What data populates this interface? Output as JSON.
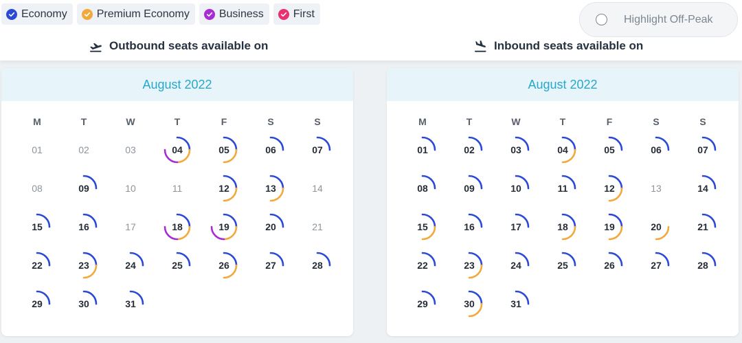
{
  "colors": {
    "economy": "#2b49d8",
    "premium_economy": "#f2a93b",
    "business": "#a92bd6",
    "first": "#ec2f6f"
  },
  "legend": [
    {
      "label": "Economy",
      "color": "#2b49d8"
    },
    {
      "label": "Premium Economy",
      "color": "#f2a93b"
    },
    {
      "label": "Business",
      "color": "#a92bd6"
    },
    {
      "label": "First",
      "color": "#ec2f6f"
    }
  ],
  "offpeak": {
    "label": "Highlight Off-Peak",
    "checked": false
  },
  "outbound": {
    "heading": "Outbound seats available on",
    "icon": "plane-departure-icon",
    "month": "August 2022",
    "weekdays": [
      "M",
      "T",
      "W",
      "T",
      "F",
      "S",
      "S"
    ],
    "days": [
      {
        "label": "01",
        "cabins": []
      },
      {
        "label": "02",
        "cabins": []
      },
      {
        "label": "03",
        "cabins": []
      },
      {
        "label": "04",
        "cabins": [
          "economy",
          "premium_economy",
          "business"
        ]
      },
      {
        "label": "05",
        "cabins": [
          "economy",
          "premium_economy"
        ]
      },
      {
        "label": "06",
        "cabins": [
          "economy"
        ]
      },
      {
        "label": "07",
        "cabins": [
          "economy"
        ]
      },
      {
        "label": "08",
        "cabins": []
      },
      {
        "label": "09",
        "cabins": [
          "economy"
        ]
      },
      {
        "label": "10",
        "cabins": []
      },
      {
        "label": "11",
        "cabins": []
      },
      {
        "label": "12",
        "cabins": [
          "economy",
          "premium_economy"
        ]
      },
      {
        "label": "13",
        "cabins": [
          "economy",
          "premium_economy"
        ]
      },
      {
        "label": "14",
        "cabins": []
      },
      {
        "label": "15",
        "cabins": [
          "economy"
        ]
      },
      {
        "label": "16",
        "cabins": [
          "economy"
        ]
      },
      {
        "label": "17",
        "cabins": []
      },
      {
        "label": "18",
        "cabins": [
          "economy",
          "premium_economy",
          "business"
        ]
      },
      {
        "label": "19",
        "cabins": [
          "economy",
          "premium_economy",
          "business"
        ]
      },
      {
        "label": "20",
        "cabins": [
          "economy"
        ]
      },
      {
        "label": "21",
        "cabins": []
      },
      {
        "label": "22",
        "cabins": [
          "economy"
        ]
      },
      {
        "label": "23",
        "cabins": [
          "economy",
          "premium_economy"
        ]
      },
      {
        "label": "24",
        "cabins": [
          "economy"
        ]
      },
      {
        "label": "25",
        "cabins": [
          "economy"
        ]
      },
      {
        "label": "26",
        "cabins": [
          "economy",
          "premium_economy"
        ]
      },
      {
        "label": "27",
        "cabins": [
          "economy"
        ]
      },
      {
        "label": "28",
        "cabins": [
          "economy"
        ]
      },
      {
        "label": "29",
        "cabins": [
          "economy"
        ]
      },
      {
        "label": "30",
        "cabins": [
          "economy"
        ]
      },
      {
        "label": "31",
        "cabins": [
          "economy"
        ]
      }
    ]
  },
  "inbound": {
    "heading": "Inbound seats available on",
    "icon": "plane-arrival-icon",
    "month": "August 2022",
    "weekdays": [
      "M",
      "T",
      "W",
      "T",
      "F",
      "S",
      "S"
    ],
    "days": [
      {
        "label": "01",
        "cabins": [
          "economy"
        ]
      },
      {
        "label": "02",
        "cabins": [
          "economy"
        ]
      },
      {
        "label": "03",
        "cabins": [
          "economy"
        ]
      },
      {
        "label": "04",
        "cabins": [
          "economy",
          "premium_economy"
        ]
      },
      {
        "label": "05",
        "cabins": [
          "economy"
        ]
      },
      {
        "label": "06",
        "cabins": [
          "economy"
        ]
      },
      {
        "label": "07",
        "cabins": [
          "economy"
        ]
      },
      {
        "label": "08",
        "cabins": [
          "economy"
        ]
      },
      {
        "label": "09",
        "cabins": [
          "economy"
        ]
      },
      {
        "label": "10",
        "cabins": [
          "economy"
        ]
      },
      {
        "label": "11",
        "cabins": [
          "economy"
        ]
      },
      {
        "label": "12",
        "cabins": [
          "economy",
          "premium_economy"
        ]
      },
      {
        "label": "13",
        "cabins": []
      },
      {
        "label": "14",
        "cabins": [
          "economy"
        ]
      },
      {
        "label": "15",
        "cabins": [
          "economy",
          "premium_economy"
        ]
      },
      {
        "label": "16",
        "cabins": [
          "economy"
        ]
      },
      {
        "label": "17",
        "cabins": [
          "economy"
        ]
      },
      {
        "label": "18",
        "cabins": [
          "economy",
          "premium_economy"
        ]
      },
      {
        "label": "19",
        "cabins": [
          "economy",
          "premium_economy"
        ]
      },
      {
        "label": "20",
        "cabins": [
          "premium_economy"
        ]
      },
      {
        "label": "21",
        "cabins": [
          "economy"
        ]
      },
      {
        "label": "22",
        "cabins": [
          "economy"
        ]
      },
      {
        "label": "23",
        "cabins": [
          "economy",
          "premium_economy"
        ]
      },
      {
        "label": "24",
        "cabins": [
          "economy"
        ]
      },
      {
        "label": "25",
        "cabins": [
          "economy"
        ]
      },
      {
        "label": "26",
        "cabins": [
          "economy"
        ]
      },
      {
        "label": "27",
        "cabins": [
          "economy"
        ]
      },
      {
        "label": "28",
        "cabins": [
          "economy"
        ]
      },
      {
        "label": "29",
        "cabins": [
          "economy"
        ]
      },
      {
        "label": "30",
        "cabins": [
          "economy",
          "premium_economy"
        ]
      },
      {
        "label": "31",
        "cabins": [
          "economy"
        ]
      }
    ]
  }
}
